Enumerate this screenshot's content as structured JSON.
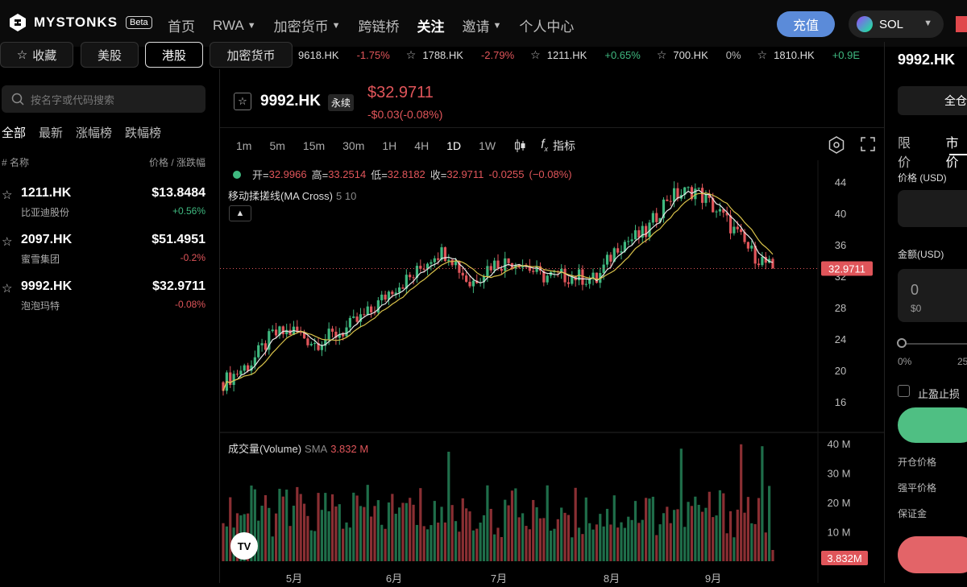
{
  "header": {
    "brand": "MYSTONKS",
    "beta": "Beta",
    "nav": [
      {
        "label": "首页",
        "dropdown": false
      },
      {
        "label": "RWA",
        "dropdown": true
      },
      {
        "label": "加密货币",
        "dropdown": true
      },
      {
        "label": "跨链桥",
        "dropdown": false
      },
      {
        "label": "关注",
        "dropdown": false,
        "active": true
      },
      {
        "label": "邀请",
        "dropdown": true
      },
      {
        "label": "个人中心",
        "dropdown": false
      }
    ],
    "deposit": "充值",
    "chain": "SOL",
    "accent": "#5b8bd9"
  },
  "categories": [
    "收藏",
    "美股",
    "港股",
    "加密货币"
  ],
  "active_category": "港股",
  "ticker": [
    {
      "symbol": "9618.HK",
      "change": "-1.75%",
      "dir": "down"
    },
    {
      "symbol": "1788.HK",
      "change": "-2.79%",
      "dir": "down"
    },
    {
      "symbol": "1211.HK",
      "change": "+0.65%",
      "dir": "up"
    },
    {
      "symbol": "700.HK",
      "change": "0%",
      "dir": "flat"
    },
    {
      "symbol": "1810.HK",
      "change": "+0.9E",
      "dir": "up"
    }
  ],
  "sidebar": {
    "search_placeholder": "按名字或代码搜索",
    "filters": [
      "全部",
      "最新",
      "涨幅榜",
      "跌幅榜"
    ],
    "col_name": "# 名称",
    "col_price": "价格 / 涨跌幅",
    "rows": [
      {
        "symbol": "1211.HK",
        "name": "比亚迪股份",
        "price": "$13.8484",
        "change": "+0.56%",
        "dir": "up"
      },
      {
        "symbol": "2097.HK",
        "name": "蜜雪集团",
        "price": "$51.4951",
        "change": "-0.2%",
        "dir": "down"
      },
      {
        "symbol": "9992.HK",
        "name": "泡泡玛特",
        "price": "$32.9711",
        "change": "-0.08%",
        "dir": "down"
      }
    ]
  },
  "main": {
    "symbol": "9992.HK",
    "perp": "永续",
    "price": "$32.9711",
    "change": "-$0.03(-0.08%)",
    "timeframes": [
      "1m",
      "5m",
      "15m",
      "30m",
      "1H",
      "4H",
      "1D",
      "1W"
    ],
    "active_timeframe": "1D",
    "indicator_label": "指标",
    "ohlc": {
      "open_label": "开=",
      "open": "32.9966",
      "high_label": "高=",
      "high": "33.2514",
      "low_label": "低=",
      "low": "32.8182",
      "close_label": "收=",
      "close": "32.9711",
      "chg": "-0.0255",
      "chg_pct": "(−0.08%)"
    },
    "ma_label": "移动揉搓线(MA Cross)",
    "ma_params": "5 10",
    "vol_label": "成交量(Volume)",
    "vol_sma": "SMA",
    "vol_value": "3.832 M",
    "vol_tag": "3.832M",
    "price_tag": "32.9711",
    "tv_logo": "TV"
  },
  "chart_data": {
    "type": "candlestick",
    "price_axis": [
      16,
      20,
      24,
      28,
      32,
      36,
      40,
      44
    ],
    "volume_axis": [
      "10 M",
      "20 M",
      "30 M",
      "40 M"
    ],
    "x_labels": [
      "5月",
      "6月",
      "7月",
      "8月",
      "9月"
    ],
    "last_price": 32.9711,
    "colors": {
      "up": "#3fb980",
      "down": "#e0555a",
      "ma5": "#d9c24a",
      "ma10": "#e8e8e8"
    }
  },
  "order": {
    "symbol": "9992.HK",
    "full_position": "全仓",
    "tabs": [
      "限价",
      "市价"
    ],
    "price_label": "价格 (USD)",
    "amount_label": "金额(USD)",
    "amount_value": "0",
    "amount_sub": "$0",
    "pct_0": "0%",
    "pct_25": "25",
    "tpsl": "止盈止损",
    "open_price": "开仓价格",
    "liq_price": "强平价格",
    "margin": "保证金"
  }
}
